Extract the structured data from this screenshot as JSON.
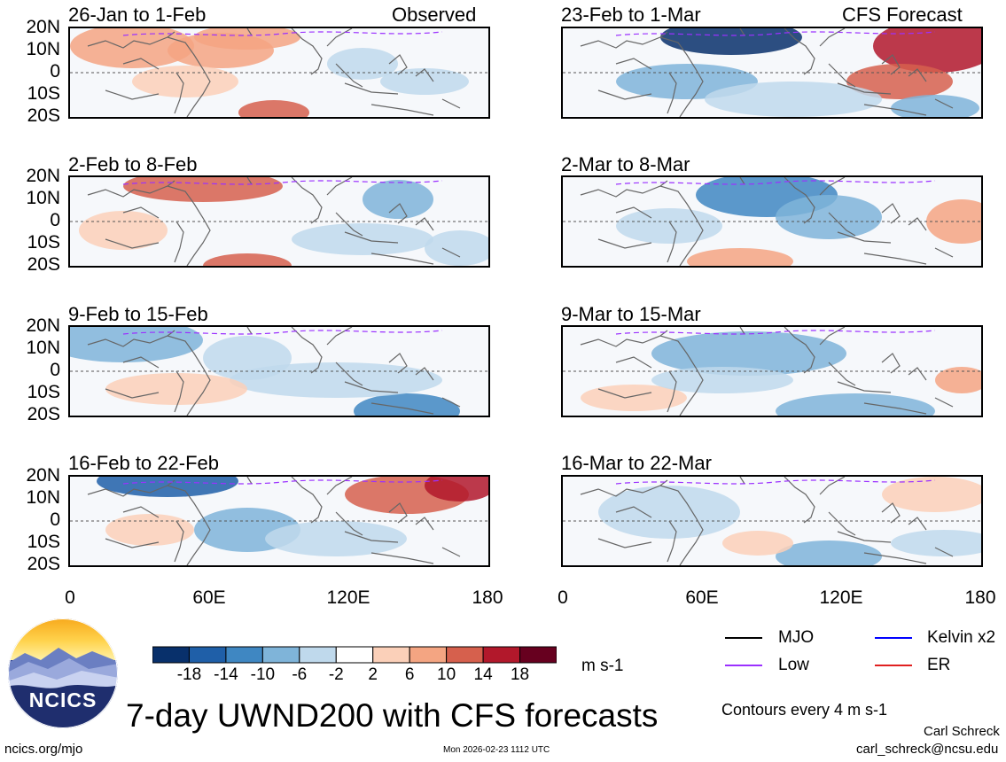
{
  "chart_data": {
    "type": "heatmap",
    "title": "7-day UWND200 with CFS forecasts",
    "variable": "UWND200",
    "units": "m s-1",
    "x_ticks": [
      "0",
      "60E",
      "120E",
      "180"
    ],
    "y_ticks": [
      "20N",
      "10N",
      "0",
      "10S",
      "20S"
    ],
    "xlim": [
      0,
      180
    ],
    "ylim": [
      -20,
      20
    ],
    "colorbar": {
      "ticks": [
        "-18",
        "-14",
        "-10",
        "-6",
        "-2",
        "2",
        "6",
        "10",
        "14",
        "18"
      ],
      "colors": [
        "#08306b",
        "#1f5fa8",
        "#3f87c2",
        "#7fb4d9",
        "#bfd9ec",
        "#ffffff",
        "#fbd0b9",
        "#f4a582",
        "#d6604d",
        "#b2182b",
        "#67001f"
      ]
    },
    "observed_label": "Observed",
    "forecast_label": "CFS Forecast",
    "panels": [
      {
        "period": "26-Jan to 1-Feb",
        "source": "Observed"
      },
      {
        "period": "2-Feb to 8-Feb",
        "source": "Observed"
      },
      {
        "period": "9-Feb to 15-Feb",
        "source": "Observed"
      },
      {
        "period": "16-Feb to 22-Feb",
        "source": "Observed"
      },
      {
        "period": "23-Feb to 1-Mar",
        "source": "CFS Forecast"
      },
      {
        "period": "2-Mar to 8-Mar",
        "source": "CFS Forecast"
      },
      {
        "period": "9-Mar to 15-Mar",
        "source": "CFS Forecast"
      },
      {
        "period": "16-Mar to 22-Mar",
        "source": "CFS Forecast"
      }
    ],
    "legend": [
      {
        "label": "MJO",
        "color": "#000000"
      },
      {
        "label": "Kelvin x2",
        "color": "#0000ff"
      },
      {
        "label": "Low",
        "color": "#9b30ff"
      },
      {
        "label": "ER",
        "color": "#e02020"
      }
    ],
    "contour_note": "Contours every 4 m s-1"
  },
  "footer": {
    "logo_text": "NCICS",
    "site": "ncics.org/mjo",
    "timestamp": "Mon 2026-02-23 1112 UTC",
    "author": "Carl Schreck",
    "email": "carl_schreck@ncsu.edu"
  }
}
